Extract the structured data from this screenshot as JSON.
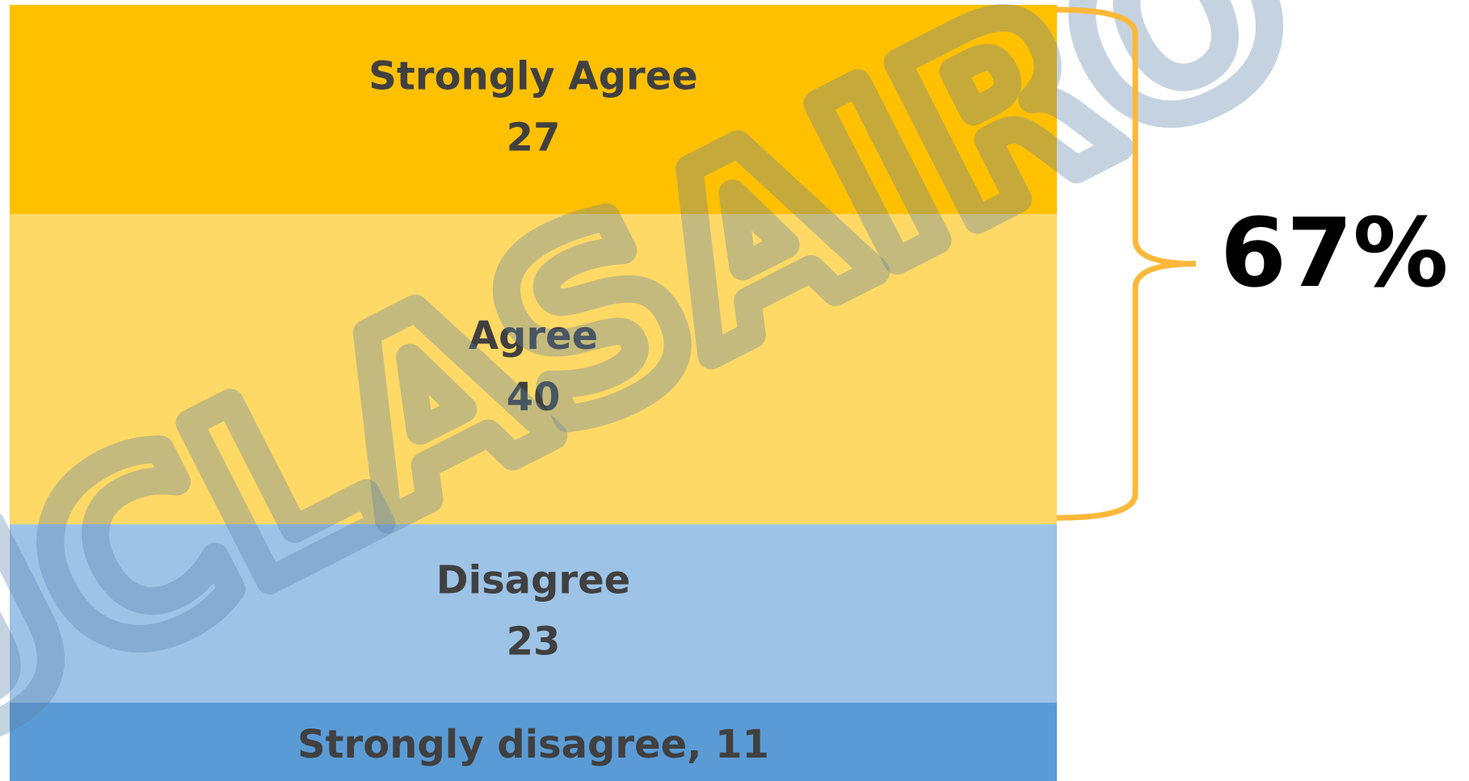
{
  "chart_data": {
    "type": "stacked-bar",
    "categories": [
      "Strongly Agree",
      "Agree",
      "Disagree",
      "Strongly disagree"
    ],
    "values": [
      27,
      40,
      23,
      11
    ],
    "colors": [
      "#FFC000",
      "#FFD966",
      "#9DC3E6",
      "#5B9BD5"
    ],
    "inline_label_separator": ", ",
    "annotation": "67%",
    "annotation_color": "#000000",
    "brace_color": "#FBB83A",
    "watermark": "UCLASAIRO"
  }
}
